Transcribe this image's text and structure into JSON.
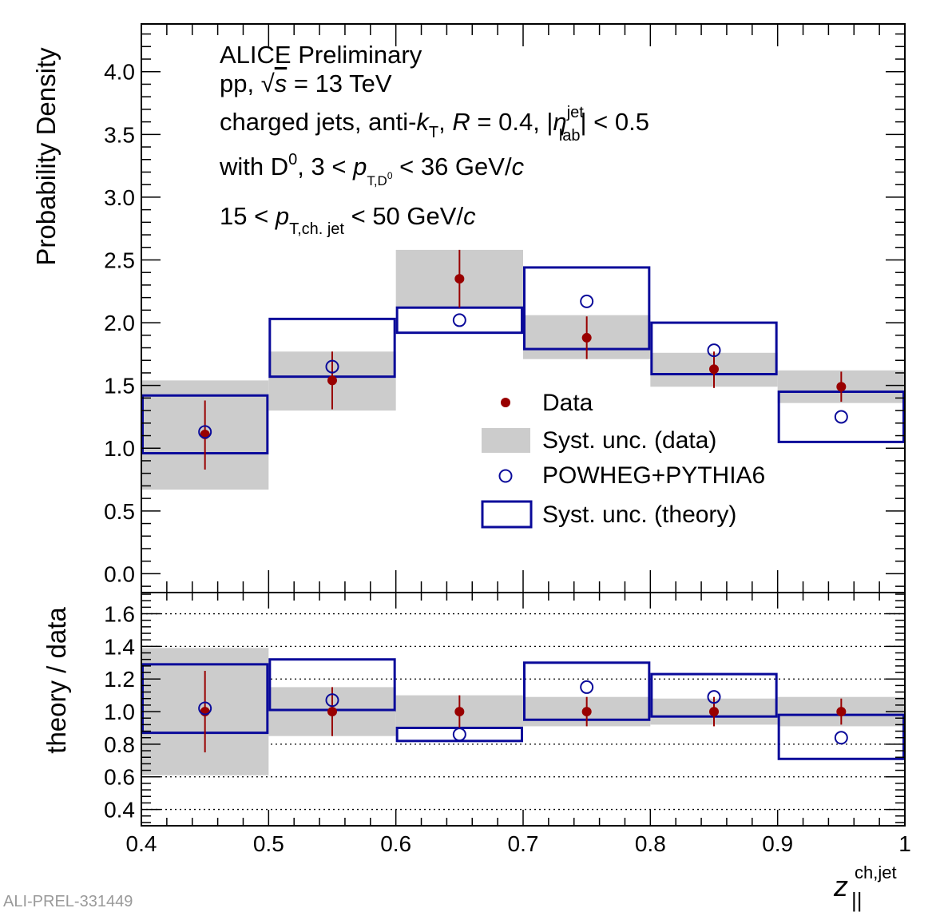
{
  "watermark": "ALI-PREL-331449",
  "chart_data": [
    {
      "type": "scatter",
      "panel": "top",
      "ylabel": "Probability Density",
      "xlabel": "",
      "xlim": [
        0.4,
        1.0
      ],
      "ylim": [
        -0.15,
        4.38
      ],
      "yticks": [
        0.0,
        0.5,
        1.0,
        1.5,
        2.0,
        2.5,
        3.0,
        3.5,
        4.0
      ],
      "ytick_labels": [
        "0.0",
        "0.5",
        "1.0",
        "1.5",
        "2.0",
        "2.5",
        "3.0",
        "3.5",
        "4.0"
      ],
      "bins": [
        [
          0.4,
          0.5
        ],
        [
          0.5,
          0.6
        ],
        [
          0.6,
          0.7
        ],
        [
          0.7,
          0.8
        ],
        [
          0.8,
          0.9
        ],
        [
          0.9,
          1.0
        ]
      ],
      "series": [
        {
          "name": "Data",
          "x": [
            0.45,
            0.55,
            0.65,
            0.75,
            0.85,
            0.95
          ],
          "y": [
            1.11,
            1.54,
            2.35,
            1.88,
            1.63,
            1.49
          ],
          "stat_err_low": [
            0.28,
            0.23,
            0.23,
            0.17,
            0.15,
            0.12
          ],
          "stat_err_high": [
            0.27,
            0.23,
            0.23,
            0.17,
            0.14,
            0.12
          ],
          "color": "#990000"
        },
        {
          "name": "Syst. unc. (data)",
          "low": [
            0.67,
            1.3,
            2.12,
            1.71,
            1.49,
            1.36
          ],
          "high": [
            1.54,
            1.77,
            2.58,
            2.06,
            1.76,
            1.62
          ],
          "color": "#cccccc"
        },
        {
          "name": "POWHEG+PYTHIA6",
          "x": [
            0.45,
            0.55,
            0.65,
            0.75,
            0.85,
            0.95
          ],
          "y": [
            1.13,
            1.65,
            2.02,
            2.17,
            1.78,
            1.25
          ],
          "color": "#0a0a9a"
        },
        {
          "name": "Syst. unc. (theory)",
          "low": [
            0.96,
            1.57,
            1.92,
            1.79,
            1.59,
            1.05
          ],
          "high": [
            1.42,
            2.03,
            2.12,
            2.44,
            2.0,
            1.45
          ],
          "color": "#0a0a9a"
        }
      ],
      "annotations": {
        "line1": "ALICE Preliminary",
        "line2_pre": "pp, ",
        "line2_sqrt": "√",
        "line2_s": "s",
        "line2_post": " = 13 TeV",
        "line3_pre": "charged jets, anti-",
        "line3_k": "k",
        "line3_ksub": "T",
        "line3_mid": ", ",
        "line3_R": "R",
        "line3_Rval": " = 0.4, |",
        "line3_eta": "η",
        "line3_etasup": "jet",
        "line3_etasub": "lab",
        "line3_post": "| < 0.5",
        "line4_pre": "with D",
        "line4_sup": "0",
        "line4_mid": ", 3 < ",
        "line4_p": "p",
        "line4_sub": "T,D",
        "line4_subsup": "0",
        "line4_post": " < 36 GeV/",
        "line4_c": "c",
        "line5_pre": "15 < ",
        "line5_p": "p",
        "line5_sub": "T,ch. jet",
        "line5_post": " < 50 GeV/",
        "line5_c": "c"
      },
      "legend": [
        "Data",
        "Syst. unc. (data)",
        "POWHEG+PYTHIA6",
        "Syst. unc. (theory)"
      ],
      "legend_position": "center-right"
    },
    {
      "type": "scatter",
      "panel": "bottom",
      "ylabel": "theory / data",
      "xlabel_main": "z",
      "xlabel_sup": "ch,jet",
      "xlabel_sub": "||",
      "xlim": [
        0.4,
        1.0
      ],
      "ylim": [
        0.3,
        1.73
      ],
      "yticks": [
        0.4,
        0.6,
        0.8,
        1.0,
        1.2,
        1.4,
        1.6
      ],
      "ytick_labels": [
        "0.4",
        "0.6",
        "0.8",
        "1.0",
        "1.2",
        "1.4",
        "1.6"
      ],
      "xticks": [
        0.4,
        0.5,
        0.6,
        0.7,
        0.8,
        0.9,
        1.0
      ],
      "xtick_labels": [
        "0.4",
        "0.5",
        "0.6",
        "0.7",
        "0.8",
        "0.9",
        "1"
      ],
      "grid_y": [
        0.4,
        0.6,
        0.8,
        1.0,
        1.2,
        1.4,
        1.6
      ],
      "series": [
        {
          "name": "Data",
          "x": [
            0.45,
            0.55,
            0.65,
            0.75,
            0.85,
            0.95
          ],
          "y": [
            1.0,
            1.0,
            1.0,
            1.0,
            1.0,
            1.0
          ],
          "stat_err_low": [
            0.25,
            0.15,
            0.1,
            0.09,
            0.09,
            0.08
          ],
          "stat_err_high": [
            0.25,
            0.15,
            0.1,
            0.09,
            0.09,
            0.08
          ]
        },
        {
          "name": "Syst. unc. (data)",
          "low": [
            0.61,
            0.85,
            0.9,
            0.91,
            0.92,
            0.91
          ],
          "high": [
            1.39,
            1.15,
            1.1,
            1.09,
            1.08,
            1.09
          ]
        },
        {
          "name": "POWHEG+PYTHIA6",
          "x": [
            0.45,
            0.55,
            0.65,
            0.75,
            0.85,
            0.95
          ],
          "y": [
            1.02,
            1.07,
            0.86,
            1.15,
            1.09,
            0.84
          ]
        },
        {
          "name": "Syst. unc. (theory)",
          "low": [
            0.87,
            1.01,
            0.82,
            0.95,
            0.97,
            0.71
          ],
          "high": [
            1.29,
            1.32,
            0.9,
            1.3,
            1.23,
            0.98
          ]
        }
      ]
    }
  ]
}
